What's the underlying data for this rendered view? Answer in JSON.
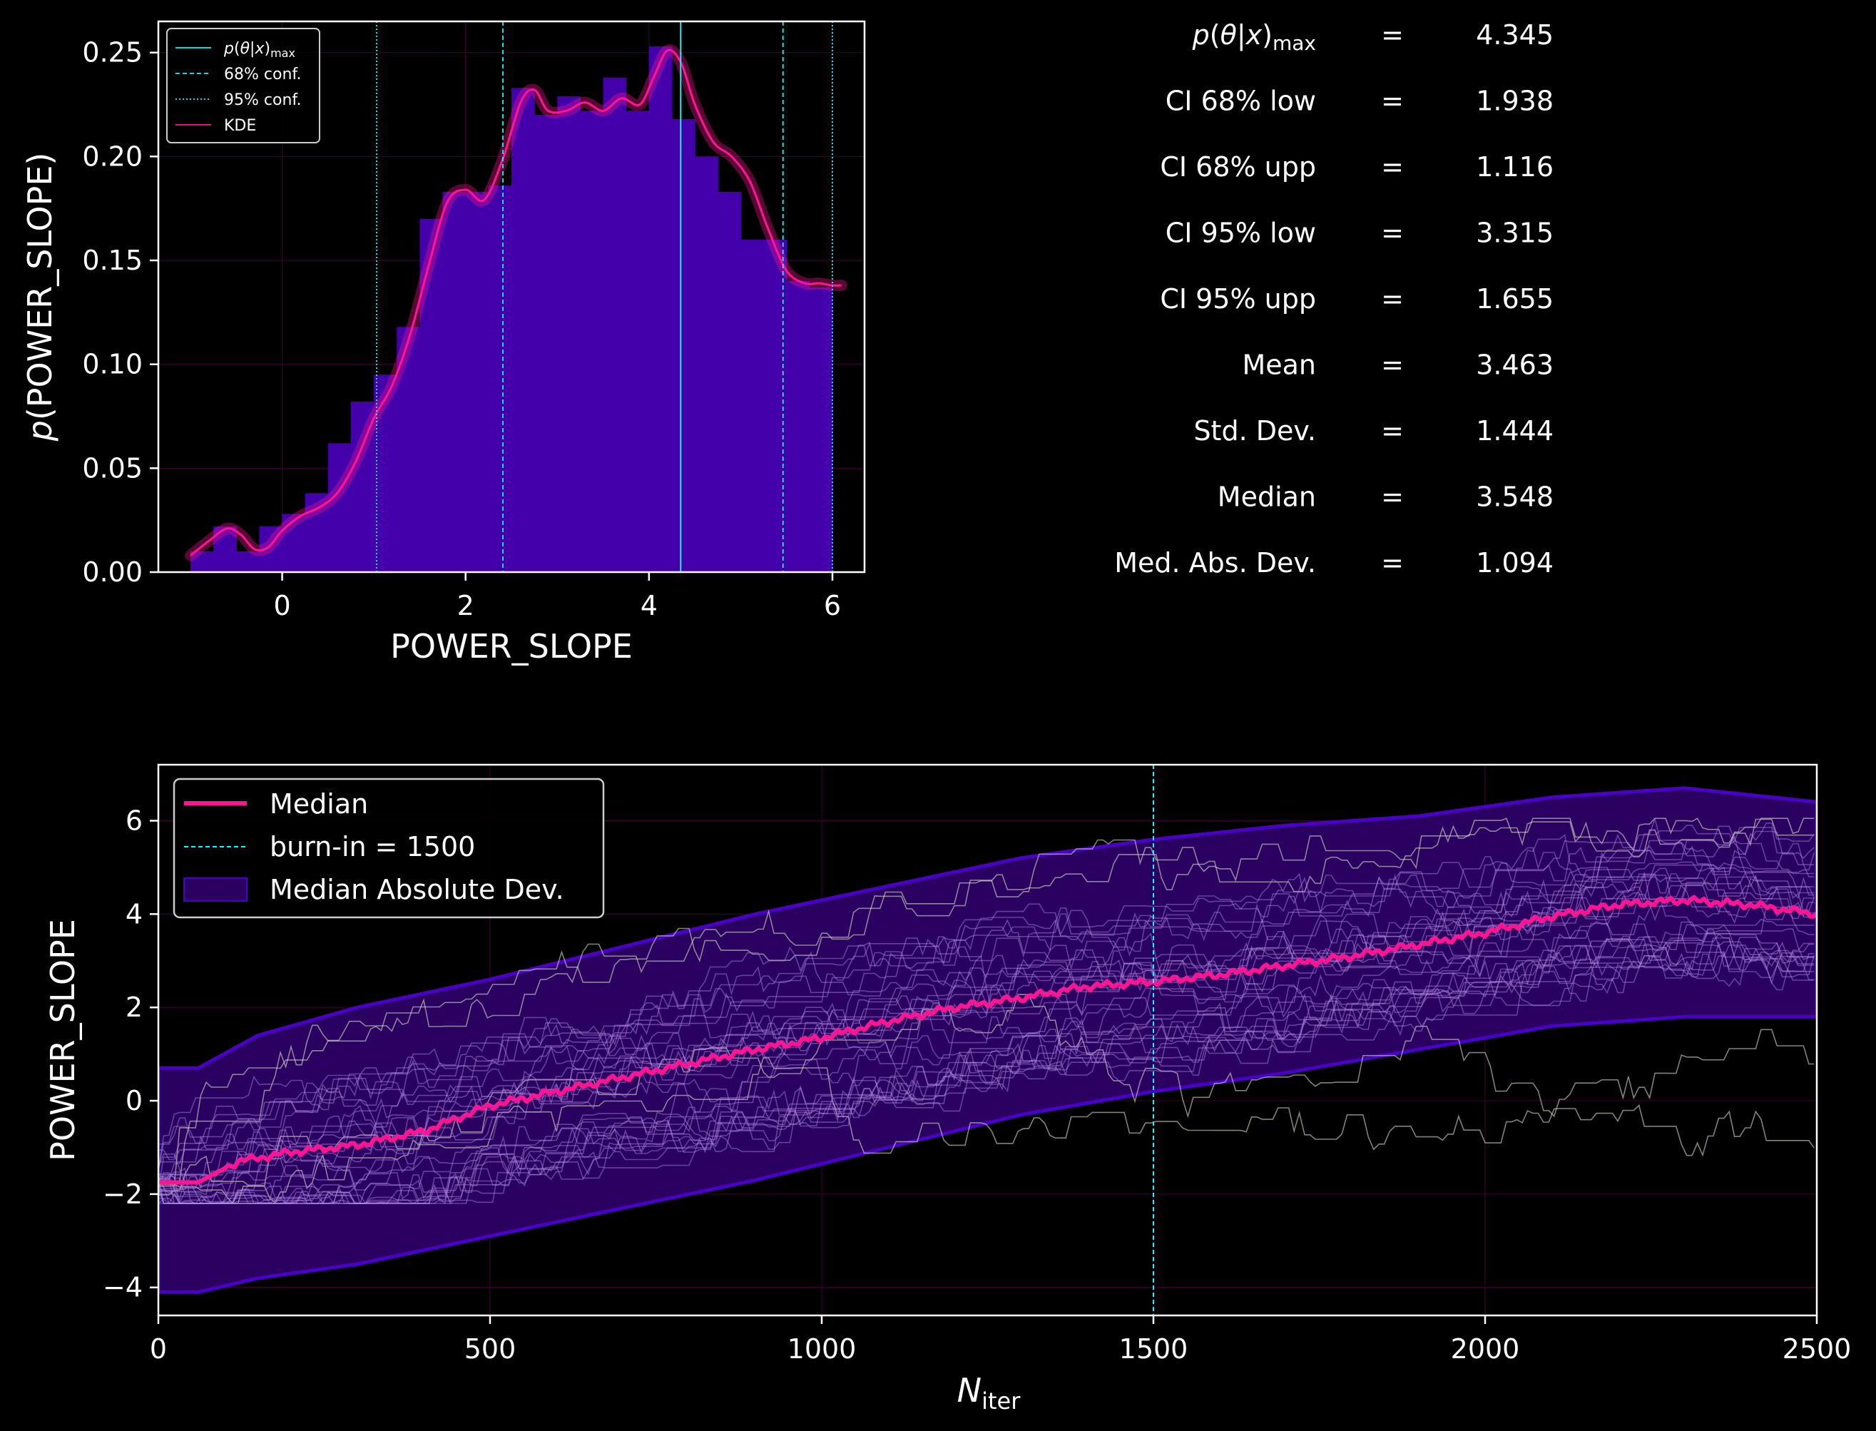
{
  "colors": {
    "background": "#000000",
    "hist_bar": "#4400aa",
    "kde": "#ff1493",
    "cyan": "#00ffff",
    "median": "#ff1493",
    "mad_band": "#2a0060",
    "mad_edge": "#4b00c8",
    "chains": "#b48ce8",
    "chains_pre": "#d8d8c8",
    "grid": "#3a0030"
  },
  "chart_data": [
    {
      "type": "bar",
      "name": "posterior-histogram",
      "xlabel": "POWER_SLOPE",
      "ylabel": "p(POWER_SLOPE)",
      "xlim": [
        -1.35,
        6.35
      ],
      "ylim": [
        0,
        0.265
      ],
      "xticks": [
        0,
        2,
        4,
        6
      ],
      "yticks": [
        0.0,
        0.05,
        0.1,
        0.15,
        0.2,
        0.25
      ],
      "ytick_labels": [
        "0.00",
        "0.05",
        "0.10",
        "0.15",
        "0.20",
        "0.25"
      ],
      "grid": true,
      "legend_position": "top-left",
      "legend": [
        {
          "label": "p(θ|x)max",
          "style": "solid",
          "color": "#00ffff"
        },
        {
          "label": "68% conf.",
          "style": "dashed",
          "color": "#00ffff"
        },
        {
          "label": "95% conf.",
          "style": "dotted",
          "color": "#00ffff"
        },
        {
          "label": "KDE",
          "style": "solid",
          "color": "#ff1493"
        }
      ],
      "bin_edges": [
        -1.0,
        -0.75,
        -0.5,
        -0.25,
        0.0,
        0.25,
        0.5,
        0.75,
        1.0,
        1.25,
        1.5,
        1.75,
        2.0,
        2.25,
        2.5,
        2.75,
        3.0,
        3.25,
        3.5,
        3.75,
        4.0,
        4.25,
        4.5,
        4.75,
        5.0,
        5.25,
        5.5,
        5.75,
        6.0
      ],
      "values": [
        0.01,
        0.022,
        0.01,
        0.022,
        0.028,
        0.038,
        0.062,
        0.082,
        0.095,
        0.118,
        0.17,
        0.183,
        0.183,
        0.186,
        0.233,
        0.22,
        0.229,
        0.222,
        0.238,
        0.222,
        0.253,
        0.218,
        0.2,
        0.183,
        0.16,
        0.16,
        0.14,
        0.137
      ],
      "kde": {
        "x": [
          -1.0,
          -0.8,
          -0.6,
          -0.45,
          -0.3,
          -0.15,
          0.0,
          0.2,
          0.4,
          0.6,
          0.8,
          1.0,
          1.2,
          1.4,
          1.6,
          1.8,
          2.0,
          2.2,
          2.4,
          2.6,
          2.75,
          2.9,
          3.1,
          3.3,
          3.5,
          3.7,
          3.9,
          4.05,
          4.2,
          4.35,
          4.5,
          4.7,
          4.9,
          5.1,
          5.3,
          5.5,
          5.7,
          5.85,
          6.0,
          6.1
        ],
        "y": [
          0.008,
          0.015,
          0.021,
          0.018,
          0.011,
          0.012,
          0.02,
          0.027,
          0.031,
          0.038,
          0.053,
          0.074,
          0.09,
          0.115,
          0.148,
          0.178,
          0.184,
          0.179,
          0.198,
          0.226,
          0.232,
          0.222,
          0.222,
          0.226,
          0.222,
          0.228,
          0.225,
          0.238,
          0.251,
          0.245,
          0.225,
          0.207,
          0.2,
          0.188,
          0.165,
          0.145,
          0.139,
          0.139,
          0.138,
          0.138
        ]
      },
      "p_max": 4.345,
      "ci68": [
        2.407,
        5.461
      ],
      "ci95": [
        1.03,
        6.0
      ]
    },
    {
      "type": "line",
      "name": "trace-plot",
      "xlabel": "N_iter",
      "ylabel": "POWER_SLOPE",
      "xlim": [
        0,
        2500
      ],
      "ylim": [
        -4.6,
        7.2
      ],
      "xticks": [
        0,
        500,
        1000,
        1500,
        2000,
        2500
      ],
      "yticks": [
        -4,
        -2,
        0,
        2,
        4,
        6
      ],
      "ytick_labels": [
        "−4",
        "−2",
        "0",
        "2",
        "4",
        "6"
      ],
      "grid": true,
      "legend_position": "top-left",
      "legend": [
        {
          "label": "Median",
          "style": "solid",
          "color": "#ff1493"
        },
        {
          "label": "burn-in = 1500",
          "style": "dashed",
          "color": "#00ffff"
        },
        {
          "label": "Median Absolute Dev.",
          "style": "patch",
          "color": "#2a0060"
        }
      ],
      "burn_in": 1500,
      "median": {
        "x": [
          0,
          60,
          120,
          200,
          300,
          400,
          500,
          600,
          700,
          800,
          900,
          1000,
          1100,
          1200,
          1300,
          1400,
          1500,
          1600,
          1700,
          1800,
          1900,
          2000,
          2100,
          2200,
          2300,
          2400,
          2500
        ],
        "y": [
          -1.75,
          -1.75,
          -1.3,
          -1.1,
          -0.95,
          -0.65,
          -0.1,
          0.2,
          0.5,
          0.8,
          1.1,
          1.35,
          1.7,
          2.0,
          2.2,
          2.45,
          2.55,
          2.7,
          2.9,
          3.1,
          3.35,
          3.6,
          3.95,
          4.2,
          4.3,
          4.2,
          4.0
        ]
      },
      "mad_band": {
        "x": [
          0,
          60,
          150,
          300,
          500,
          700,
          900,
          1100,
          1300,
          1500,
          1700,
          1900,
          2100,
          2300,
          2500
        ],
        "lower": [
          -4.1,
          -4.1,
          -3.8,
          -3.5,
          -2.9,
          -2.3,
          -1.7,
          -1.0,
          -0.3,
          0.2,
          0.6,
          1.1,
          1.6,
          1.8,
          1.8
        ],
        "upper": [
          0.7,
          0.7,
          1.4,
          2.0,
          2.6,
          3.3,
          4.0,
          4.6,
          5.2,
          5.6,
          5.9,
          6.1,
          6.5,
          6.7,
          6.4
        ]
      }
    }
  ],
  "stats": [
    {
      "label": "p(θ|x)max",
      "eq": "=",
      "value": "4.345"
    },
    {
      "label": "CI 68% low",
      "eq": "=",
      "value": "1.938"
    },
    {
      "label": "CI 68% upp",
      "eq": "=",
      "value": "1.116"
    },
    {
      "label": "CI 95% low",
      "eq": "=",
      "value": "3.315"
    },
    {
      "label": "CI 95% upp",
      "eq": "=",
      "value": "1.655"
    },
    {
      "label": "Mean",
      "eq": "=",
      "value": "3.463"
    },
    {
      "label": "Std.  Dev.",
      "eq": "=",
      "value": "1.444"
    },
    {
      "label": "Median",
      "eq": "=",
      "value": "3.548"
    },
    {
      "label": "Med. Abs. Dev.",
      "eq": "=",
      "value": "1.094"
    }
  ]
}
